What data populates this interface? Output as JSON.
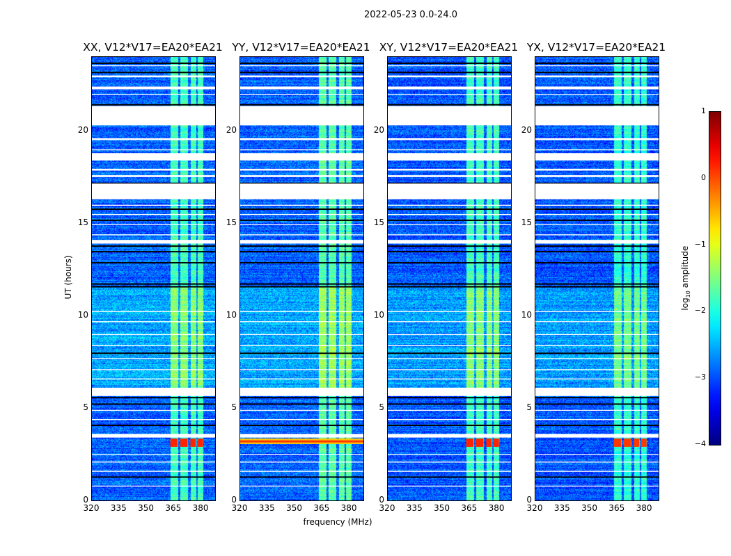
{
  "suptitle": "2022-05-23 0.0-24.0",
  "chart_data": {
    "type": "heatmap",
    "title": "2022-05-23 0.0-24.0",
    "xlabel": "frequency (MHz)",
    "ylabel": "UT (hours)",
    "xlim": [
      320,
      387.6
    ],
    "ylim": [
      0,
      24
    ],
    "xticks": [
      "320",
      "335",
      "350",
      "365",
      "380"
    ],
    "yticks": [
      "0",
      "5",
      "10",
      "15",
      "20"
    ],
    "colorbar": {
      "label": "log10 amplitude",
      "label_main": "log",
      "label_sub": "10",
      "label_tail": " amplitude",
      "range": [
        -4,
        1
      ],
      "ticks": [
        "1",
        "0",
        "−1",
        "−2",
        "−3",
        "−4"
      ],
      "colormap": "jet"
    },
    "flagged_hours": [
      [
        21.35,
        20.3
      ],
      [
        18.8,
        18.4
      ],
      [
        17.15,
        16.3
      ],
      [
        14.1,
        13.9
      ],
      [
        6.1,
        5.65
      ],
      [
        3.6,
        3.4
      ],
      [
        23.55,
        23.5
      ],
      [
        23.0,
        22.9
      ],
      [
        22.4,
        22.25
      ],
      [
        22.0,
        21.95
      ],
      [
        19.6,
        19.5
      ],
      [
        19.0,
        18.95
      ],
      [
        17.95,
        17.85
      ],
      [
        17.6,
        17.5
      ],
      [
        16.0,
        15.95
      ],
      [
        15.5,
        15.45
      ],
      [
        14.95,
        14.9
      ],
      [
        14.4,
        14.35
      ],
      [
        10.25,
        10.2
      ],
      [
        9.7,
        9.65
      ],
      [
        9.0,
        8.95
      ],
      [
        8.4,
        8.35
      ],
      [
        7.7,
        7.65
      ],
      [
        7.1,
        7.05
      ],
      [
        6.6,
        6.55
      ],
      [
        4.9,
        4.85
      ],
      [
        4.4,
        4.35
      ],
      [
        2.5,
        2.45
      ],
      [
        2.1,
        2.05
      ],
      [
        1.6,
        1.55
      ],
      [
        0.8,
        0.75
      ]
    ],
    "dark_lines_hours": [
      23.7,
      23.2,
      21.45,
      17.2,
      15.8,
      15.2,
      13.8,
      13.5,
      12.9,
      11.75,
      11.6,
      8.0,
      5.6,
      5.25,
      4.1,
      1.3
    ],
    "bright_channels_mhz": [
      [
        363,
        367
      ],
      [
        368.5,
        372.5
      ],
      [
        374,
        377
      ],
      [
        378,
        381
      ]
    ],
    "panels": [
      {
        "title": "XX, V12*V17=EA20*EA21",
        "base_level": -2.9,
        "channel_level": -1.8,
        "rfi": {
          "hours": [
            2.9,
            3.35
          ],
          "level": 0.2,
          "band": [
            363,
            381
          ]
        }
      },
      {
        "title": "YY, V12*V17=EA20*EA21",
        "base_level": -2.9,
        "channel_level": -1.7,
        "rfi": {
          "hours": [
            3.05,
            3.35
          ],
          "level": 0.1,
          "band": [
            320,
            388
          ]
        }
      },
      {
        "title": "XY, V12*V17=EA20*EA21",
        "base_level": -2.95,
        "channel_level": -1.8,
        "rfi": {
          "hours": [
            2.9,
            3.35
          ],
          "level": 0.2,
          "band": [
            363,
            381
          ]
        }
      },
      {
        "title": "YX, V12*V17=EA20*EA21",
        "base_level": -2.95,
        "channel_level": -1.9,
        "rfi": {
          "hours": [
            2.9,
            3.35
          ],
          "level": 0.1,
          "band": [
            363,
            381
          ]
        }
      }
    ]
  }
}
